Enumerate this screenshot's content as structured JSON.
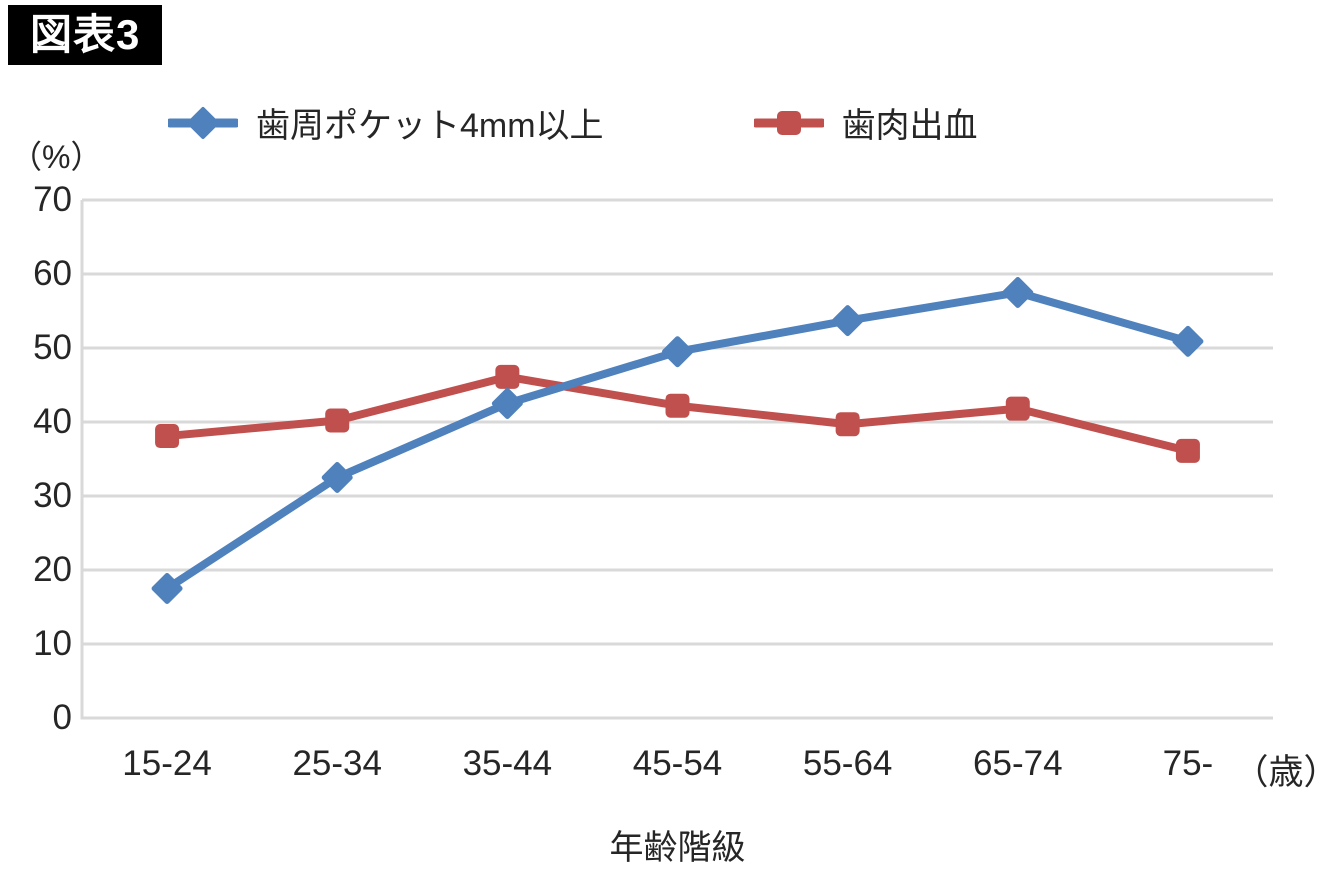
{
  "figure_label": "図表3",
  "chart_data": {
    "type": "line",
    "title": "",
    "categories": [
      "15-24",
      "25-34",
      "35-44",
      "45-54",
      "55-64",
      "65-74",
      "75-"
    ],
    "series": [
      {
        "name": "歯周ポケット4mm以上",
        "color": "#4f81bd",
        "marker": "diamond",
        "values": [
          17.5,
          32.5,
          42.5,
          49.5,
          53.7,
          57.5,
          50.9
        ]
      },
      {
        "name": "歯肉出血",
        "color": "#c0504d",
        "marker": "square",
        "values": [
          38.1,
          40.2,
          46.1,
          42.2,
          39.7,
          41.8,
          36.1
        ]
      }
    ],
    "y_axis": {
      "unit_label": "（%）",
      "min": 0,
      "max": 70,
      "tick_step": 10,
      "ticks": [
        0,
        10,
        20,
        30,
        40,
        50,
        60,
        70
      ]
    },
    "x_axis": {
      "unit_label": "（歳）",
      "title": "年齢階級"
    },
    "grid": true,
    "grid_color": "#d9d9d9",
    "legend_position": "top",
    "text_color": "#262626"
  }
}
